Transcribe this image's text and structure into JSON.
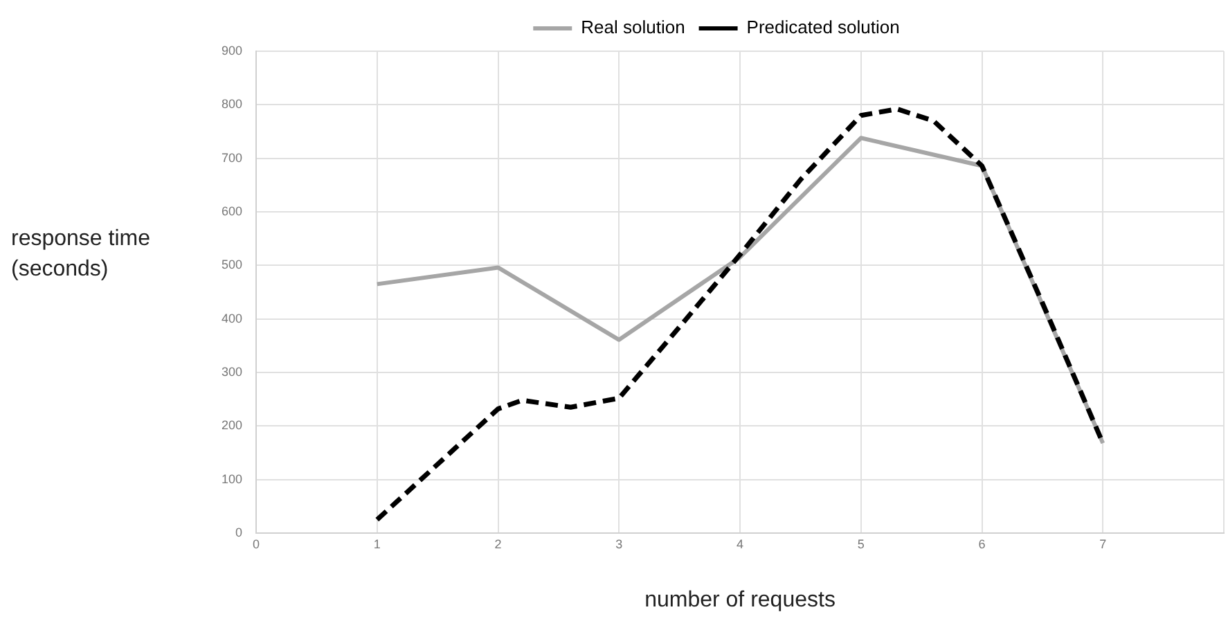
{
  "chart_data": {
    "type": "line",
    "xlabel": "number of requests",
    "ylabel": "response time (seconds)",
    "xlim": [
      0,
      8
    ],
    "xticks": [
      0,
      1,
      2,
      3,
      4,
      5,
      6,
      7,
      {
        "value": 8,
        "label": null
      }
    ],
    "ylim": [
      0,
      900
    ],
    "yticks": [
      0,
      100,
      200,
      300,
      400,
      500,
      600,
      700,
      800,
      900
    ],
    "grid": true,
    "legend": "top",
    "marker": "none",
    "series": [
      {
        "name": "Real solution",
        "color": "#a6a6a6",
        "line_style": "solid",
        "x": [
          1,
          2,
          3,
          4,
          5,
          6,
          7
        ],
        "values": [
          465,
          496,
          361,
          515,
          738,
          686,
          168
        ]
      },
      {
        "name": "Predicated solution",
        "color": "#000000",
        "line_style": "dashed",
        "x": [
          1,
          2,
          2.2,
          2.6,
          3,
          3.5,
          4,
          4.5,
          5,
          5.3,
          5.6,
          6,
          6.5,
          7
        ],
        "values": [
          25,
          232,
          248,
          235,
          252,
          385,
          520,
          660,
          780,
          792,
          770,
          686,
          430,
          168
        ]
      }
    ]
  }
}
